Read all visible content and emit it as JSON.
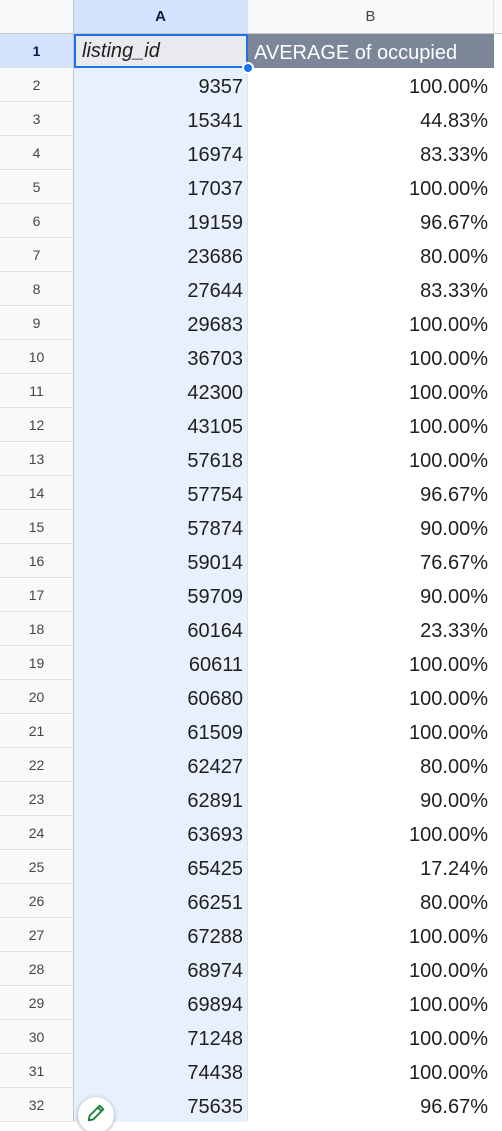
{
  "columns": {
    "a": "A",
    "b": "B"
  },
  "header": {
    "row_number": "1",
    "listing_id": "listing_id",
    "average": "AVERAGE of occupied"
  },
  "rows": [
    {
      "n": "2",
      "id": "9357",
      "avg": "100.00%"
    },
    {
      "n": "3",
      "id": "15341",
      "avg": "44.83%"
    },
    {
      "n": "4",
      "id": "16974",
      "avg": "83.33%"
    },
    {
      "n": "5",
      "id": "17037",
      "avg": "100.00%"
    },
    {
      "n": "6",
      "id": "19159",
      "avg": "96.67%"
    },
    {
      "n": "7",
      "id": "23686",
      "avg": "80.00%"
    },
    {
      "n": "8",
      "id": "27644",
      "avg": "83.33%"
    },
    {
      "n": "9",
      "id": "29683",
      "avg": "100.00%"
    },
    {
      "n": "10",
      "id": "36703",
      "avg": "100.00%"
    },
    {
      "n": "11",
      "id": "42300",
      "avg": "100.00%"
    },
    {
      "n": "12",
      "id": "43105",
      "avg": "100.00%"
    },
    {
      "n": "13",
      "id": "57618",
      "avg": "100.00%"
    },
    {
      "n": "14",
      "id": "57754",
      "avg": "96.67%"
    },
    {
      "n": "15",
      "id": "57874",
      "avg": "90.00%"
    },
    {
      "n": "16",
      "id": "59014",
      "avg": "76.67%"
    },
    {
      "n": "17",
      "id": "59709",
      "avg": "90.00%"
    },
    {
      "n": "18",
      "id": "60164",
      "avg": "23.33%"
    },
    {
      "n": "19",
      "id": "60611",
      "avg": "100.00%"
    },
    {
      "n": "20",
      "id": "60680",
      "avg": "100.00%"
    },
    {
      "n": "21",
      "id": "61509",
      "avg": "100.00%"
    },
    {
      "n": "22",
      "id": "62427",
      "avg": "80.00%"
    },
    {
      "n": "23",
      "id": "62891",
      "avg": "90.00%"
    },
    {
      "n": "24",
      "id": "63693",
      "avg": "100.00%"
    },
    {
      "n": "25",
      "id": "65425",
      "avg": "17.24%"
    },
    {
      "n": "26",
      "id": "66251",
      "avg": "80.00%"
    },
    {
      "n": "27",
      "id": "67288",
      "avg": "100.00%"
    },
    {
      "n": "28",
      "id": "68974",
      "avg": "100.00%"
    },
    {
      "n": "29",
      "id": "69894",
      "avg": "100.00%"
    },
    {
      "n": "30",
      "id": "71248",
      "avg": "100.00%"
    },
    {
      "n": "31",
      "id": "74438",
      "avg": "100.00%"
    },
    {
      "n": "32",
      "id": "75635",
      "avg": "96.67%"
    }
  ],
  "colors": {
    "selection": "#1a73e8",
    "header_fill": "#7b8799",
    "column_highlight": "#d3e3fd"
  },
  "icons": {
    "edit_fab": "pencil-icon"
  }
}
